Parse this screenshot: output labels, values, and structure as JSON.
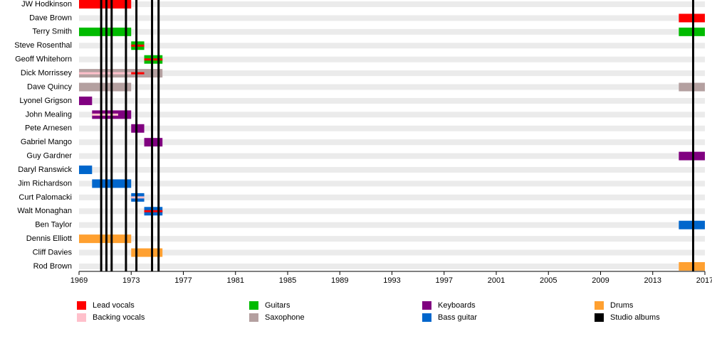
{
  "chart_data": {
    "type": "timeline",
    "xlim": [
      1969,
      2017
    ],
    "xticks": [
      1969,
      1973,
      1977,
      1981,
      1985,
      1989,
      1993,
      1997,
      2001,
      2005,
      2009,
      2013,
      2017
    ],
    "roles": [
      {
        "name": "Lead vocals",
        "color": "#ff0000",
        "vocal": true
      },
      {
        "name": "Backing vocals",
        "color": "#ffc0cb",
        "vocal": true
      },
      {
        "name": "Guitars",
        "color": "#00bb00",
        "vocal": false
      },
      {
        "name": "Saxophone",
        "color": "#b4a0a0",
        "vocal": false
      },
      {
        "name": "Keyboards",
        "color": "#800080",
        "vocal": false
      },
      {
        "name": "Bass guitar",
        "color": "#0066cc",
        "vocal": false
      },
      {
        "name": "Drums",
        "color": "#ffa030",
        "vocal": false
      }
    ],
    "albums": {
      "name": "Studio albums",
      "color": "#000000",
      "years": [
        1970.7,
        1971.1,
        1971.5,
        1972.6,
        1973.4,
        1974.6,
        1975.1,
        2016.1
      ]
    },
    "members": [
      {
        "name": "JW Hodkinson",
        "periods": [
          {
            "role": "Lead vocals",
            "start": 1969,
            "end": 1973
          }
        ]
      },
      {
        "name": "Dave Brown",
        "periods": [
          {
            "role": "Lead vocals",
            "start": 2015,
            "end": 2017
          }
        ]
      },
      {
        "name": "Terry Smith",
        "periods": [
          {
            "role": "Guitars",
            "start": 1969,
            "end": 1973
          },
          {
            "role": "Guitars",
            "start": 2015,
            "end": 2017
          }
        ]
      },
      {
        "name": "Steve Rosenthal",
        "periods": [
          {
            "role": "Guitars",
            "start": 1973,
            "end": 1974
          },
          {
            "role": "Lead vocals",
            "start": 1973,
            "end": 1974
          }
        ]
      },
      {
        "name": "Geoff Whitehorn",
        "periods": [
          {
            "role": "Guitars",
            "start": 1974,
            "end": 1975.4
          },
          {
            "role": "Lead vocals",
            "start": 1974,
            "end": 1975.4
          }
        ]
      },
      {
        "name": "Dick Morrissey",
        "periods": [
          {
            "role": "Saxophone",
            "start": 1969,
            "end": 1975.4
          },
          {
            "role": "Backing vocals",
            "start": 1969,
            "end": 1973
          },
          {
            "role": "Lead vocals",
            "start": 1973,
            "end": 1974
          }
        ]
      },
      {
        "name": "Dave Quincy",
        "periods": [
          {
            "role": "Saxophone",
            "start": 1969,
            "end": 1973
          },
          {
            "role": "Saxophone",
            "start": 2015,
            "end": 2017
          }
        ]
      },
      {
        "name": "Lyonel Grigson",
        "periods": [
          {
            "role": "Keyboards",
            "start": 1969,
            "end": 1970
          }
        ]
      },
      {
        "name": "John Mealing",
        "periods": [
          {
            "role": "Keyboards",
            "start": 1970,
            "end": 1973
          },
          {
            "role": "Backing vocals",
            "start": 1970,
            "end": 1972
          }
        ]
      },
      {
        "name": "Pete Arnesen",
        "periods": [
          {
            "role": "Keyboards",
            "start": 1973,
            "end": 1974
          }
        ]
      },
      {
        "name": "Gabriel Mango",
        "periods": [
          {
            "role": "Keyboards",
            "start": 1974,
            "end": 1975.4
          }
        ]
      },
      {
        "name": "Guy Gardner",
        "periods": [
          {
            "role": "Keyboards",
            "start": 2015,
            "end": 2017
          }
        ]
      },
      {
        "name": "Daryl Ranswick",
        "periods": [
          {
            "role": "Bass guitar",
            "start": 1969,
            "end": 1970
          }
        ]
      },
      {
        "name": "Jim Richardson",
        "periods": [
          {
            "role": "Bass guitar",
            "start": 1970,
            "end": 1973
          }
        ]
      },
      {
        "name": "Curt Palomacki",
        "periods": [
          {
            "role": "Bass guitar",
            "start": 1973,
            "end": 1974
          },
          {
            "role": "Backing vocals",
            "start": 1973,
            "end": 1974
          }
        ]
      },
      {
        "name": "Walt Monaghan",
        "periods": [
          {
            "role": "Bass guitar",
            "start": 1974,
            "end": 1975.4
          },
          {
            "role": "Lead vocals",
            "start": 1974,
            "end": 1975.4
          }
        ]
      },
      {
        "name": "Ben Taylor",
        "periods": [
          {
            "role": "Bass guitar",
            "start": 2015,
            "end": 2017
          }
        ]
      },
      {
        "name": "Dennis Elliott",
        "periods": [
          {
            "role": "Drums",
            "start": 1969,
            "end": 1973
          }
        ]
      },
      {
        "name": "Cliff Davies",
        "periods": [
          {
            "role": "Drums",
            "start": 1973,
            "end": 1975.4
          }
        ]
      },
      {
        "name": "Rod Brown",
        "periods": [
          {
            "role": "Drums",
            "start": 2015,
            "end": 2017
          }
        ]
      }
    ]
  }
}
